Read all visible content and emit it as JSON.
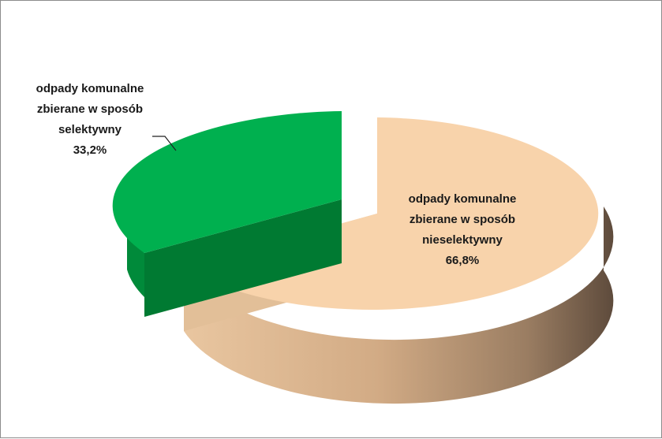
{
  "chart_data": {
    "type": "pie",
    "style": "3d-exploded",
    "slices": [
      {
        "label_lines": [
          "odpady komunalne",
          "zbierane w sposób",
          "nieselektywny"
        ],
        "value_label": "66,8%",
        "value": 66.8,
        "color": "#f7d0a8"
      },
      {
        "label_lines": [
          "odpady komunalne",
          "zbierane w sposób",
          "selektywny"
        ],
        "value_label": "33,2%",
        "value": 33.2,
        "color": "#00b04f"
      }
    ]
  }
}
